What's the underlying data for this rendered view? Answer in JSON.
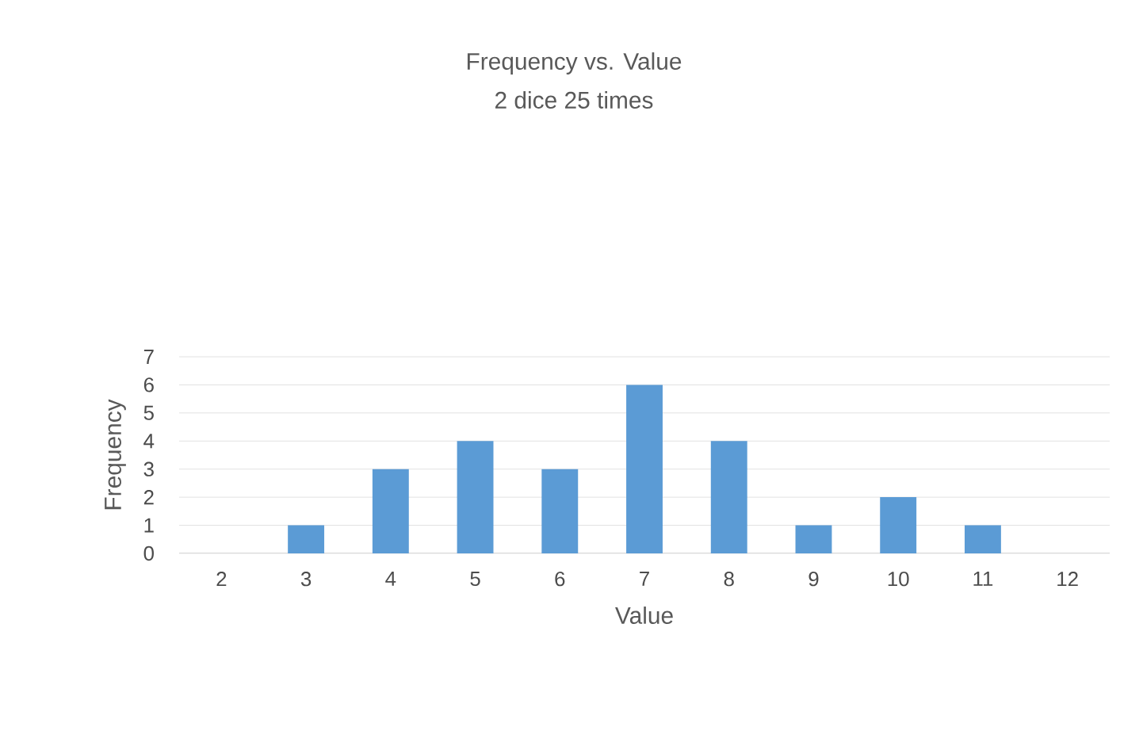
{
  "chart_data": {
    "type": "bar",
    "title": "Frequency vs. Value",
    "subtitle": "2 dice 25 times",
    "xlabel": "Value",
    "ylabel": "Frequency",
    "categories": [
      "2",
      "3",
      "4",
      "5",
      "6",
      "7",
      "8",
      "9",
      "10",
      "11",
      "12"
    ],
    "values": [
      0,
      1,
      3,
      4,
      3,
      6,
      4,
      1,
      2,
      1,
      0
    ],
    "color": "#5b9bd5",
    "ylim": [
      0,
      7
    ],
    "yticks": [
      0,
      1,
      2,
      3,
      4,
      5,
      6,
      7
    ],
    "grid": "y"
  }
}
